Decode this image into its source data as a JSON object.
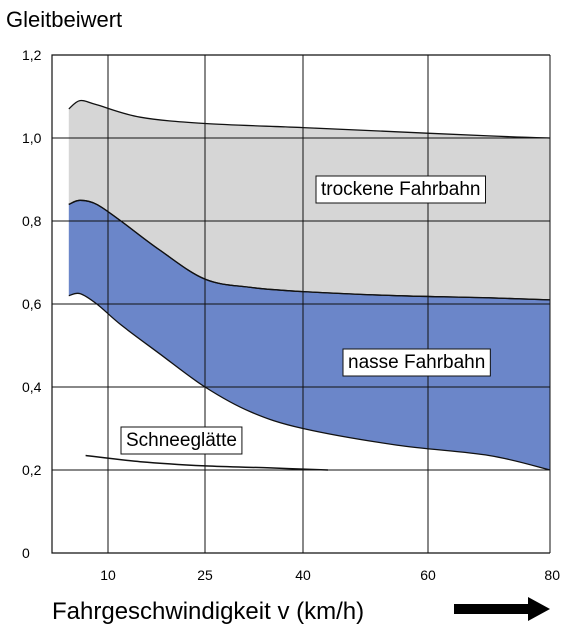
{
  "chart_data": {
    "type": "area",
    "ylabel": "Gleitbeiwert",
    "xlabel": "Fahrgeschwindigkeit v (km/h)",
    "y_ticks": [
      "0",
      "0,2",
      "0,4",
      "0,6",
      "0,8",
      "1,0",
      "1,2"
    ],
    "x_ticks": [
      "10",
      "25",
      "40",
      "60",
      "80"
    ],
    "y_tick_values": [
      0,
      0.2,
      0.4,
      0.6,
      0.8,
      1.0,
      1.2
    ],
    "ylim": [
      0,
      1.2
    ],
    "x_axis_note": "categorical, unevenly spaced tick labels",
    "grid": true,
    "colors": {
      "dry": "#d6d6d6",
      "wet": "#6b86c9",
      "grid": "#111111",
      "arrow": "#000000"
    },
    "regions": [
      {
        "name": "trockene Fahrbahn",
        "upper": [
          [
            3,
            1.07
          ],
          [
            5,
            1.09
          ],
          [
            8,
            1.08
          ],
          [
            15,
            1.05
          ],
          [
            25,
            1.035
          ],
          [
            40,
            1.025
          ],
          [
            55,
            1.015
          ],
          [
            70,
            1.005
          ],
          [
            80,
            1.0
          ]
        ],
        "lower": [
          [
            3,
            0.84
          ],
          [
            5,
            0.85
          ],
          [
            8,
            0.84
          ],
          [
            12,
            0.8
          ],
          [
            18,
            0.73
          ],
          [
            25,
            0.66
          ],
          [
            32,
            0.64
          ],
          [
            40,
            0.63
          ],
          [
            55,
            0.62
          ],
          [
            70,
            0.615
          ],
          [
            80,
            0.61
          ]
        ]
      },
      {
        "name": "nasse Fahrbahn",
        "upper": [
          [
            3,
            0.84
          ],
          [
            5,
            0.85
          ],
          [
            8,
            0.84
          ],
          [
            12,
            0.8
          ],
          [
            18,
            0.73
          ],
          [
            25,
            0.66
          ],
          [
            32,
            0.64
          ],
          [
            40,
            0.63
          ],
          [
            55,
            0.62
          ],
          [
            70,
            0.615
          ],
          [
            80,
            0.61
          ]
        ],
        "lower": [
          [
            3,
            0.62
          ],
          [
            5,
            0.625
          ],
          [
            8,
            0.6
          ],
          [
            12,
            0.55
          ],
          [
            18,
            0.48
          ],
          [
            25,
            0.4
          ],
          [
            32,
            0.34
          ],
          [
            40,
            0.3
          ],
          [
            55,
            0.26
          ],
          [
            70,
            0.235
          ],
          [
            80,
            0.2
          ]
        ]
      }
    ],
    "lines": [
      {
        "name": "Schneeglätte",
        "points": [
          [
            6,
            0.235
          ],
          [
            15,
            0.22
          ],
          [
            25,
            0.21
          ],
          [
            35,
            0.205
          ],
          [
            44,
            0.2
          ]
        ]
      }
    ]
  },
  "labels": {
    "dry": "trockene Fahrbahn",
    "wet": "nasse Fahrbahn",
    "snow": "Schneeglätte"
  }
}
